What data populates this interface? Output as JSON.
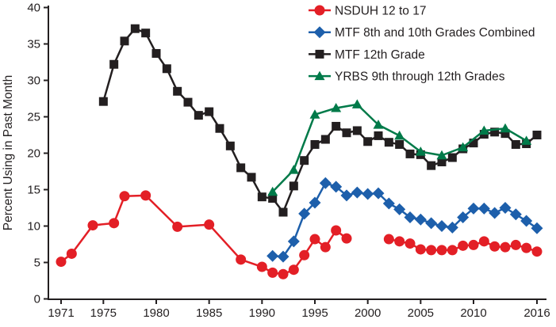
{
  "chart_data": {
    "type": "line",
    "title": "",
    "xlabel": "",
    "ylabel": "Percent Using in Past Month",
    "ylim": [
      0,
      40
    ],
    "xlim": [
      1971,
      2016
    ],
    "y_ticks": [
      0,
      5,
      10,
      15,
      20,
      25,
      30,
      35,
      40
    ],
    "x_ticks": [
      1971,
      1975,
      1980,
      1985,
      1990,
      1995,
      2000,
      2005,
      2010,
      2016
    ],
    "grid": false,
    "legend_position": "top-right",
    "axis_color": "#231f20",
    "background_color": "#ffffff",
    "series": [
      {
        "name": "NSDUH 12 to 17",
        "color": "#e31f26",
        "marker": "circle",
        "segments": [
          [
            [
              1971,
              5.1
            ],
            [
              1972,
              6.2
            ],
            [
              1974,
              10.1
            ],
            [
              1976,
              10.4
            ],
            [
              1977,
              14.1
            ],
            [
              1979,
              14.2
            ],
            [
              1982,
              9.9
            ],
            [
              1985,
              10.2
            ],
            [
              1988,
              5.4
            ],
            [
              1990,
              4.4
            ],
            [
              1991,
              3.6
            ],
            [
              1992,
              3.4
            ],
            [
              1993,
              4.0
            ],
            [
              1994,
              6.0
            ],
            [
              1995,
              8.2
            ],
            [
              1996,
              7.1
            ],
            [
              1997,
              9.4
            ],
            [
              1998,
              8.3
            ]
          ],
          [
            [
              2002,
              8.2
            ],
            [
              2003,
              7.9
            ],
            [
              2004,
              7.6
            ],
            [
              2005,
              6.8
            ],
            [
              2006,
              6.7
            ],
            [
              2007,
              6.7
            ],
            [
              2008,
              6.7
            ],
            [
              2009,
              7.3
            ],
            [
              2010,
              7.4
            ],
            [
              2011,
              7.9
            ],
            [
              2012,
              7.2
            ],
            [
              2013,
              7.1
            ],
            [
              2014,
              7.4
            ],
            [
              2015,
              7.0
            ],
            [
              2016,
              6.5
            ]
          ]
        ]
      },
      {
        "name": "MTF 8th and 10th Grades Combined",
        "color": "#1d5fab",
        "marker": "diamond",
        "segments": [
          [
            [
              1991,
              5.9
            ],
            [
              1992,
              5.8
            ],
            [
              1993,
              7.9
            ],
            [
              1994,
              11.7
            ],
            [
              1995,
              13.2
            ],
            [
              1996,
              15.9
            ],
            [
              1997,
              15.4
            ],
            [
              1998,
              14.2
            ],
            [
              1999,
              14.6
            ],
            [
              2000,
              14.4
            ],
            [
              2001,
              14.5
            ],
            [
              2002,
              13.1
            ],
            [
              2003,
              12.3
            ],
            [
              2004,
              11.2
            ],
            [
              2005,
              10.9
            ],
            [
              2006,
              10.4
            ],
            [
              2007,
              10.0
            ],
            [
              2008,
              9.8
            ],
            [
              2009,
              11.2
            ],
            [
              2010,
              12.4
            ],
            [
              2011,
              12.4
            ],
            [
              2012,
              11.8
            ],
            [
              2013,
              12.5
            ],
            [
              2014,
              11.6
            ],
            [
              2015,
              10.7
            ],
            [
              2016,
              9.7
            ]
          ]
        ]
      },
      {
        "name": "MTF 12th Grade",
        "color": "#231f20",
        "marker": "square",
        "segments": [
          [
            [
              1975,
              27.1
            ],
            [
              1976,
              32.2
            ],
            [
              1977,
              35.4
            ],
            [
              1978,
              37.1
            ],
            [
              1979,
              36.5
            ],
            [
              1980,
              33.7
            ],
            [
              1981,
              31.6
            ],
            [
              1982,
              28.5
            ],
            [
              1983,
              27.0
            ],
            [
              1984,
              25.2
            ],
            [
              1985,
              25.7
            ],
            [
              1986,
              23.4
            ],
            [
              1987,
              21.0
            ],
            [
              1988,
              18.0
            ],
            [
              1989,
              16.7
            ],
            [
              1990,
              14.0
            ],
            [
              1991,
              13.8
            ],
            [
              1992,
              11.9
            ],
            [
              1993,
              15.5
            ],
            [
              1994,
              19.0
            ],
            [
              1995,
              21.2
            ],
            [
              1996,
              21.9
            ],
            [
              1997,
              23.7
            ],
            [
              1998,
              22.8
            ],
            [
              1999,
              23.1
            ],
            [
              2000,
              21.6
            ],
            [
              2001,
              22.4
            ],
            [
              2002,
              21.5
            ],
            [
              2003,
              21.2
            ],
            [
              2004,
              19.9
            ],
            [
              2005,
              19.8
            ],
            [
              2006,
              18.3
            ],
            [
              2007,
              18.8
            ],
            [
              2008,
              19.4
            ],
            [
              2009,
              20.6
            ],
            [
              2010,
              21.4
            ],
            [
              2011,
              22.6
            ],
            [
              2012,
              22.9
            ],
            [
              2013,
              22.7
            ],
            [
              2014,
              21.2
            ],
            [
              2015,
              21.3
            ],
            [
              2016,
              22.5
            ]
          ]
        ]
      },
      {
        "name": "YRBS 9th through 12th Grades",
        "color": "#007a49",
        "marker": "triangle",
        "segments": [
          [
            [
              1991,
              14.7
            ],
            [
              1993,
              17.7
            ],
            [
              1995,
              25.3
            ],
            [
              1997,
              26.2
            ],
            [
              1999,
              26.7
            ],
            [
              2001,
              23.9
            ],
            [
              2003,
              22.4
            ],
            [
              2005,
              20.2
            ],
            [
              2007,
              19.7
            ],
            [
              2009,
              20.8
            ],
            [
              2011,
              23.1
            ],
            [
              2013,
              23.4
            ],
            [
              2015,
              21.7
            ]
          ]
        ]
      }
    ]
  }
}
